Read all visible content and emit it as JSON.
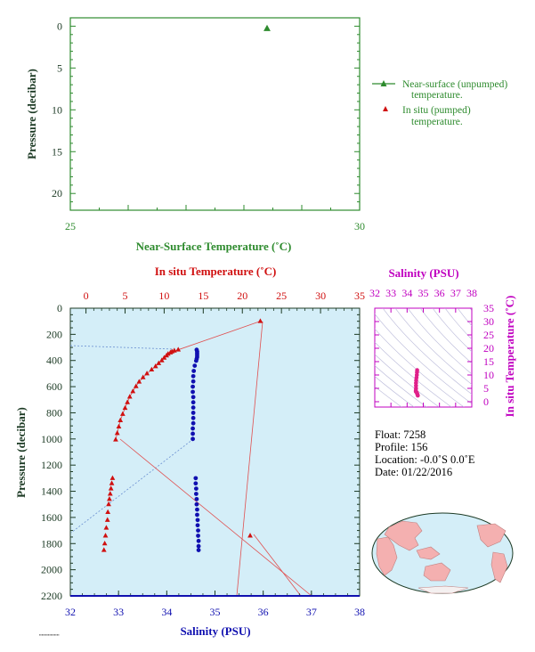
{
  "top_chart": {
    "x_axis_label": "Near-Surface Temperature (˚C)",
    "y_axis_label": "Pressure (decibar)",
    "x_ticks": [
      "25",
      "30"
    ],
    "y_ticks": [
      "0",
      "5",
      "10",
      "15",
      "20"
    ],
    "legend": {
      "near_surface_line1": "Near-surface (unpumped)",
      "near_surface_line2": "temperature.",
      "insitu_line1": "In situ (pumped)",
      "insitu_line2": "temperature."
    }
  },
  "main_chart": {
    "top_axis_label": "In situ Temperature (˚C)",
    "bottom_axis_label": "Salinity (PSU)",
    "y_axis_label": "Pressure (decibar)",
    "temp_ticks": [
      "0",
      "5",
      "10",
      "15",
      "20",
      "25",
      "30",
      "35"
    ],
    "sal_ticks": [
      "32",
      "33",
      "34",
      "35",
      "36",
      "37",
      "38"
    ],
    "p_ticks": [
      "0",
      "200",
      "400",
      "600",
      "800",
      "1000",
      "1200",
      "1400",
      "1600",
      "1800",
      "2000",
      "2200"
    ]
  },
  "ts_chart": {
    "x_axis_label": "Salinity (PSU)",
    "y_axis_label": "In situ Temperature (˚C)",
    "x_ticks": [
      "32",
      "33",
      "34",
      "35",
      "36",
      "37",
      "38"
    ],
    "y_ticks": [
      "0",
      "5",
      "10",
      "15",
      "20",
      "25",
      "30",
      "35"
    ]
  },
  "info": {
    "float": "Float:  7258",
    "profile": "Profile:  156",
    "location": "Location:  -0.0˚S   0.0˚E",
    "date": "Date:  01/22/2016"
  },
  "colors": {
    "near_surface": "#2e8b2e",
    "temperature": "#d01010",
    "salinity": "#1010b0",
    "ts": "#c000c0",
    "plot_bg": "#d4eef8"
  },
  "chart_data": [
    {
      "type": "scatter",
      "name": "near-surface temperature",
      "xlim": [
        25,
        30
      ],
      "ylim": [
        22,
        -1
      ],
      "series": [
        {
          "name": "Near-surface (unpumped) temperature.",
          "points": [
            {
              "x": 28.4,
              "y": 0.3
            }
          ]
        }
      ]
    },
    {
      "type": "line",
      "name": "profile",
      "temp_lim": [
        -2,
        35
      ],
      "sal_lim": [
        32,
        38
      ],
      "pressure_lim": [
        0,
        2200
      ],
      "series": [
        {
          "name": "In situ Temperature (˚C)",
          "points": [
            [
              22.3,
              100
            ],
            [
              11.8,
              318
            ],
            [
              11.3,
              325
            ],
            [
              11.0,
              332
            ],
            [
              10.8,
              340
            ],
            [
              10.5,
              350
            ],
            [
              10.3,
              363
            ],
            [
              10.0,
              380
            ],
            [
              9.7,
              400
            ],
            [
              9.3,
              422
            ],
            [
              8.9,
              445
            ],
            [
              8.4,
              470
            ],
            [
              7.8,
              500
            ],
            [
              7.3,
              530
            ],
            [
              6.8,
              563
            ],
            [
              6.4,
              598
            ],
            [
              6.0,
              636
            ],
            [
              5.6,
              678
            ],
            [
              5.3,
              720
            ],
            [
              5.0,
              764
            ],
            [
              4.7,
              810
            ],
            [
              4.4,
              858
            ],
            [
              4.2,
              906
            ],
            [
              4.0,
              956
            ],
            [
              3.8,
              1006
            ],
            [
              3.4,
              1300
            ],
            [
              3.3,
              1340
            ],
            [
              3.2,
              1380
            ],
            [
              3.1,
              1420
            ],
            [
              3.0,
              1460
            ],
            [
              2.9,
              1500
            ],
            [
              2.8,
              1560
            ],
            [
              2.75,
              1620
            ],
            [
              2.6,
              1680
            ],
            [
              2.5,
              1740
            ],
            [
              2.4,
              1800
            ],
            [
              2.3,
              1850
            ],
            [
              21.0,
              1740
            ]
          ]
        },
        {
          "name": "Salinity (PSU)",
          "points": [
            [
              34.62,
              318
            ],
            [
              34.63,
              332
            ],
            [
              34.63,
              346
            ],
            [
              34.63,
              360
            ],
            [
              34.63,
              374
            ],
            [
              34.62,
              388
            ],
            [
              34.61,
              402
            ],
            [
              34.58,
              440
            ],
            [
              34.56,
              480
            ],
            [
              34.55,
              520
            ],
            [
              34.55,
              560
            ],
            [
              34.54,
              600
            ],
            [
              34.54,
              640
            ],
            [
              34.55,
              680
            ],
            [
              34.55,
              720
            ],
            [
              34.55,
              760
            ],
            [
              34.55,
              800
            ],
            [
              34.55,
              840
            ],
            [
              34.55,
              880
            ],
            [
              34.54,
              920
            ],
            [
              34.54,
              960
            ],
            [
              34.54,
              1000
            ],
            [
              34.6,
              1300
            ],
            [
              34.6,
              1340
            ],
            [
              34.61,
              1380
            ],
            [
              34.61,
              1420
            ],
            [
              34.62,
              1460
            ],
            [
              34.62,
              1500
            ],
            [
              34.63,
              1540
            ],
            [
              34.63,
              1580
            ],
            [
              34.64,
              1620
            ],
            [
              34.64,
              1660
            ],
            [
              34.65,
              1700
            ],
            [
              34.65,
              1740
            ],
            [
              34.66,
              1780
            ],
            [
              34.66,
              1820
            ],
            [
              34.66,
              1850
            ]
          ]
        }
      ]
    },
    {
      "type": "scatter",
      "name": "T-S diagram",
      "xlim": [
        32,
        38
      ],
      "ylim": [
        -2,
        35
      ],
      "series": [
        {
          "name": "T-S",
          "points": [
            [
              34.62,
              11.8
            ],
            [
              34.61,
              11.0
            ],
            [
              34.6,
              10.0
            ],
            [
              34.58,
              9.0
            ],
            [
              34.56,
              8.0
            ],
            [
              34.55,
              7.0
            ],
            [
              34.55,
              6.0
            ],
            [
              34.55,
              5.0
            ],
            [
              34.54,
              4.2
            ],
            [
              34.54,
              3.8
            ],
            [
              34.6,
              3.4
            ],
            [
              34.62,
              3.0
            ],
            [
              34.64,
              2.7
            ],
            [
              34.66,
              2.3
            ]
          ]
        }
      ]
    }
  ]
}
